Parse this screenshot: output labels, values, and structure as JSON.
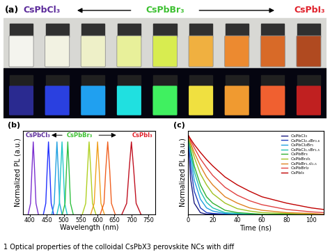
{
  "photo": {
    "label": "(a)",
    "texts": [
      {
        "text": "CsPbCl₃",
        "color": "#5b2a9a"
      },
      {
        "text": "CsPbBr₃",
        "color": "#3cc030"
      },
      {
        "text": "CsPbI₃",
        "color": "#e0202a"
      }
    ]
  },
  "chart_data": [
    {
      "type": "line",
      "label": "(b)",
      "x_label": "Wavelength (nm)",
      "y_label": "Normalized PL (a.u.)",
      "xlim": [
        380,
        770
      ],
      "xticks": [
        400,
        450,
        500,
        550,
        600,
        650,
        700,
        750
      ],
      "ylim": [
        0,
        1.15
      ],
      "tick_labels": "x",
      "annotations": [
        {
          "text": "CsPbCl₃",
          "color": "#5b2a9a"
        },
        {
          "text": "CsPbBr₃",
          "color": "#3cc030"
        },
        {
          "text": "CsPbI₃",
          "color": "#e0202a"
        }
      ],
      "series": [
        {
          "color": "#7a2fd0",
          "x": [
            395,
            402,
            406,
            410,
            414,
            418,
            425
          ],
          "values": [
            0,
            0.15,
            0.6,
            1,
            0.6,
            0.15,
            0
          ]
        },
        {
          "color": "#2030ff",
          "x": [
            440,
            447,
            451,
            455,
            459,
            463,
            470
          ],
          "values": [
            0,
            0.15,
            0.6,
            1,
            0.6,
            0.15,
            0
          ]
        },
        {
          "color": "#1fa0e0",
          "x": [
            465,
            472,
            476,
            480,
            484,
            488,
            495
          ],
          "values": [
            0,
            0.15,
            0.6,
            1,
            0.6,
            0.15,
            0
          ]
        },
        {
          "color": "#20c8c8",
          "x": [
            480,
            487,
            491,
            495,
            499,
            503,
            510
          ],
          "values": [
            0,
            0.15,
            0.6,
            1,
            0.6,
            0.15,
            0
          ]
        },
        {
          "color": "#30c040",
          "x": [
            496,
            504,
            508,
            512,
            516,
            520,
            528
          ],
          "values": [
            0,
            0.15,
            0.6,
            1,
            0.6,
            0.15,
            0
          ]
        },
        {
          "color": "#b0d020",
          "x": [
            555,
            565,
            570,
            575,
            580,
            585,
            595
          ],
          "values": [
            0,
            0.15,
            0.6,
            1,
            0.6,
            0.15,
            0
          ]
        },
        {
          "color": "#f0a020",
          "x": [
            580,
            590,
            595,
            600,
            605,
            610,
            620
          ],
          "values": [
            0,
            0.15,
            0.6,
            1,
            0.6,
            0.15,
            0
          ]
        },
        {
          "color": "#f06020",
          "x": [
            608,
            619,
            624,
            630,
            636,
            641,
            652
          ],
          "values": [
            0,
            0.15,
            0.6,
            1,
            0.6,
            0.15,
            0
          ]
        },
        {
          "color": "#c01020",
          "x": [
            672,
            686,
            693,
            700,
            707,
            714,
            728
          ],
          "values": [
            0,
            0.15,
            0.6,
            1,
            0.6,
            0.15,
            0
          ]
        }
      ]
    },
    {
      "type": "line",
      "label": "(c)",
      "x_label": "Time (ns)",
      "y_label": "Normalized PL (a.u.)",
      "xlim": [
        0,
        110
      ],
      "xticks": [
        0,
        20,
        40,
        60,
        80,
        100
      ],
      "ylim": [
        0,
        1.05
      ],
      "tick_labels": "x",
      "legend": "upper right",
      "x": [
        0,
        2,
        5,
        10,
        15,
        20,
        30,
        40,
        50,
        60,
        80,
        100,
        110
      ],
      "series": [
        {
          "name": "CsPbCl₃",
          "color": "#1a1a80",
          "values": [
            1,
            0.45,
            0.14,
            0.02,
            0,
            0,
            0,
            0,
            0,
            0,
            0,
            0,
            0
          ]
        },
        {
          "name": "CsPbCl₂.₄Br₀.₆",
          "color": "#2040c0",
          "values": [
            1,
            0.61,
            0.29,
            0.08,
            0.02,
            0.01,
            0,
            0,
            0,
            0,
            0,
            0,
            0
          ]
        },
        {
          "name": "CsPbCl₂Br₁",
          "color": "#20a0e0",
          "values": [
            1,
            0.72,
            0.43,
            0.19,
            0.08,
            0.04,
            0.01,
            0,
            0,
            0,
            0,
            0,
            0
          ]
        },
        {
          "name": "CsPbCl₁.₅Br₁.₅",
          "color": "#20c0b0",
          "values": [
            1,
            0.78,
            0.54,
            0.29,
            0.15,
            0.08,
            0.02,
            0.01,
            0,
            0,
            0,
            0,
            0
          ]
        },
        {
          "name": "CsPbBr₃",
          "color": "#30b030",
          "values": [
            1,
            0.82,
            0.61,
            0.37,
            0.22,
            0.14,
            0.05,
            0.02,
            0.01,
            0,
            0,
            0,
            0
          ]
        },
        {
          "name": "CsPbBr₂I₁",
          "color": "#a0c020",
          "values": [
            1,
            0.88,
            0.72,
            0.51,
            0.37,
            0.26,
            0.14,
            0.07,
            0.04,
            0.02,
            0.01,
            0,
            0
          ]
        },
        {
          "name": "CsPbBr₁.₅I₁.₅",
          "color": "#e08020",
          "values": [
            1,
            0.9,
            0.78,
            0.61,
            0.47,
            0.37,
            0.22,
            0.14,
            0.08,
            0.05,
            0.02,
            0.01,
            0
          ]
        },
        {
          "name": "CsPbBrI₂",
          "color": "#e04040",
          "values": [
            1,
            0.93,
            0.84,
            0.7,
            0.59,
            0.49,
            0.34,
            0.24,
            0.17,
            0.12,
            0.06,
            0.03,
            0.02
          ]
        },
        {
          "name": "CsPbI₃",
          "color": "#c00000",
          "values": [
            1,
            0.95,
            0.88,
            0.78,
            0.69,
            0.61,
            0.47,
            0.37,
            0.29,
            0.22,
            0.14,
            0.08,
            0.06
          ]
        }
      ]
    }
  ],
  "caption": "1 Optical properties of the colloidal CsPbX3 perovskite NCs with diff"
}
